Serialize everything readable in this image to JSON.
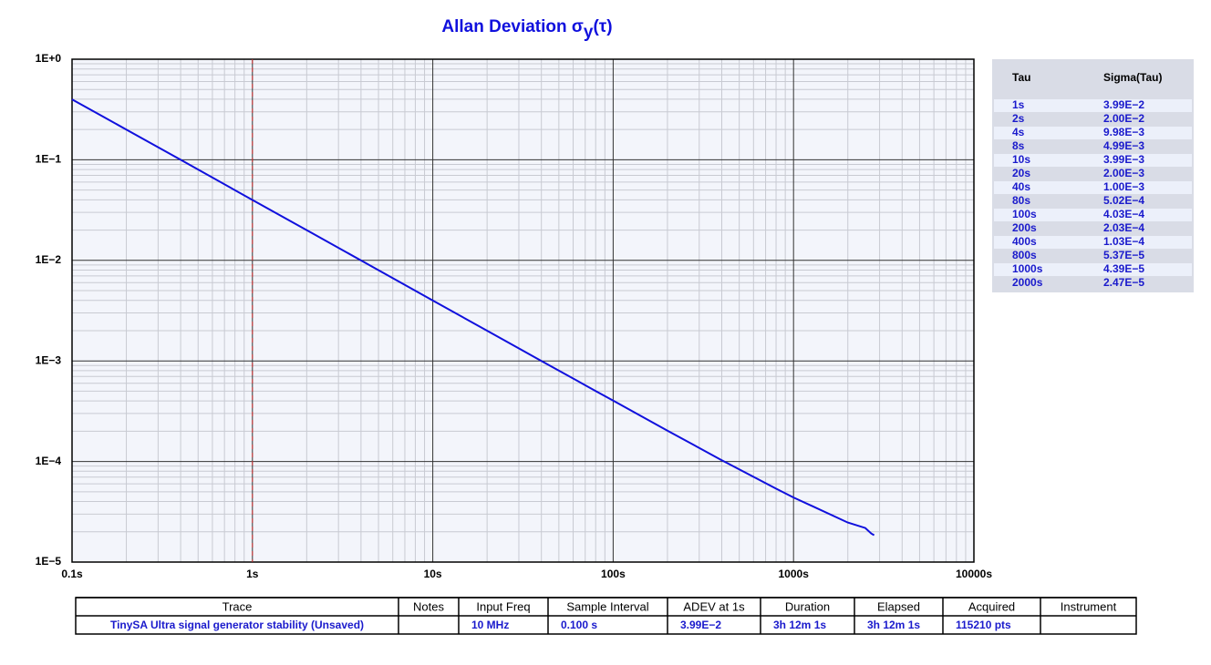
{
  "chart_data": {
    "type": "line",
    "title": [
      "Allan Deviation σ",
      "y",
      "(τ)"
    ],
    "xscale": "log",
    "yscale": "log",
    "grid": true,
    "xlim": [
      0.1,
      10000
    ],
    "ylim": [
      1e-05,
      1
    ],
    "xticks": [
      {
        "value": 0.1,
        "label": "0.1s"
      },
      {
        "value": 1,
        "label": "1s"
      },
      {
        "value": 10,
        "label": "10s"
      },
      {
        "value": 100,
        "label": "100s"
      },
      {
        "value": 1000,
        "label": "1000s"
      },
      {
        "value": 10000,
        "label": "10000s"
      }
    ],
    "yticks": [
      {
        "value": 1e-05,
        "label": "1E−5"
      },
      {
        "value": 0.0001,
        "label": "1E−4"
      },
      {
        "value": 0.001,
        "label": "1E−3"
      },
      {
        "value": 0.01,
        "label": "1E−2"
      },
      {
        "value": 0.1,
        "label": "1E−1"
      },
      {
        "value": 1,
        "label": "1E+0"
      }
    ],
    "marker_x": 1,
    "marker_color": "#d03030",
    "x": [
      0.1,
      0.2,
      0.4,
      1,
      2,
      4,
      8,
      10,
      20,
      40,
      80,
      100,
      200,
      400,
      800,
      1000,
      2000,
      2500,
      2700,
      2800
    ],
    "series": [
      {
        "name": "TinySA Ultra signal generator stability (Unsaved)",
        "color": "#1010dd",
        "values": [
          0.399,
          0.2,
          0.1,
          0.0399,
          0.02,
          0.00998,
          0.00499,
          0.00399,
          0.002,
          0.001,
          0.000502,
          0.000403,
          0.000203,
          0.000103,
          5.37e-05,
          4.39e-05,
          2.47e-05,
          2.18e-05,
          1.92e-05,
          1.85e-05
        ]
      }
    ]
  },
  "tau_table": {
    "header": [
      "Tau",
      "Sigma(Tau)"
    ],
    "rows": [
      [
        "1s",
        "3.99E−2"
      ],
      [
        "2s",
        "2.00E−2"
      ],
      [
        "4s",
        "9.98E−3"
      ],
      [
        "8s",
        "4.99E−3"
      ],
      [
        "10s",
        "3.99E−3"
      ],
      [
        "20s",
        "2.00E−3"
      ],
      [
        "40s",
        "1.00E−3"
      ],
      [
        "80s",
        "5.02E−4"
      ],
      [
        "100s",
        "4.03E−4"
      ],
      [
        "200s",
        "2.03E−4"
      ],
      [
        "400s",
        "1.03E−4"
      ],
      [
        "800s",
        "5.37E−5"
      ],
      [
        "1000s",
        "4.39E−5"
      ],
      [
        "2000s",
        "2.47E−5"
      ]
    ]
  },
  "trace_table": {
    "header": [
      "Trace",
      "Notes",
      "Input Freq",
      "Sample Interval",
      "ADEV at 1s",
      "Duration",
      "Elapsed",
      "Acquired",
      "Instrument"
    ],
    "rows": [
      [
        "TinySA Ultra signal generator stability (Unsaved)",
        "",
        "10 MHz",
        "0.100 s",
        "3.99E−2",
        "3h 12m 1s",
        "3h 12m 1s",
        "115210 pts",
        ""
      ]
    ]
  }
}
